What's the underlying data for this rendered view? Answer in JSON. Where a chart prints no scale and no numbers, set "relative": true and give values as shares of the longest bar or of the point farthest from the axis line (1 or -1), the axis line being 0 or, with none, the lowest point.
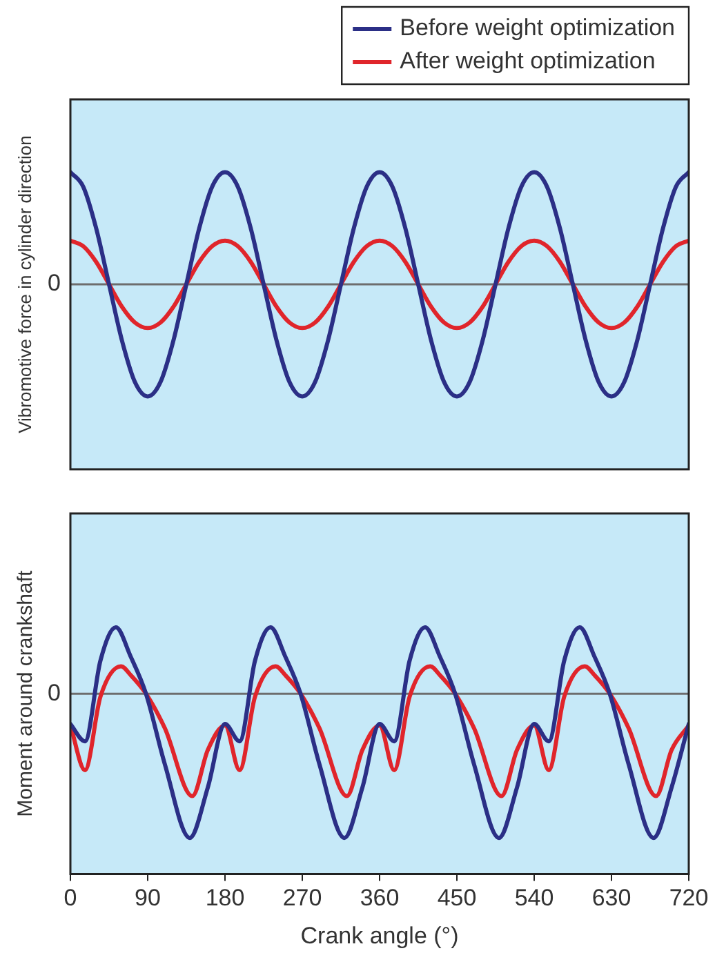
{
  "chart_data": [
    {
      "type": "line",
      "ylabel": "Vibromotive force in cylinder direction",
      "relative": true,
      "xlim": [
        0,
        720
      ],
      "xticks": [
        0,
        90,
        180,
        270,
        360,
        450,
        540,
        630,
        720
      ],
      "tick_labels": false,
      "grid": false,
      "legend": "top right",
      "marker": "none",
      "line_style": "solid",
      "ref_lines": [
        {
          "axis": "y",
          "value": 0,
          "label": "0",
          "color": "#6d6d6d"
        }
      ],
      "x": [
        0,
        15,
        30,
        45,
        60,
        75,
        90,
        105,
        120,
        135,
        150,
        165,
        180,
        195,
        210,
        225,
        240,
        255,
        270,
        285,
        300,
        315,
        330,
        345,
        360,
        375,
        390,
        405,
        420,
        435,
        450,
        465,
        480,
        495,
        510,
        525,
        540,
        555,
        570,
        585,
        600,
        615,
        630,
        645,
        660,
        675,
        690,
        705,
        720
      ],
      "series": [
        {
          "name": "Before weight optimization",
          "color": "#2b2f86",
          "values": [
            1,
            0.87,
            0.5,
            0,
            -0.5,
            -0.87,
            -1,
            -0.87,
            -0.5,
            0,
            0.5,
            0.87,
            1,
            0.87,
            0.5,
            0,
            -0.5,
            -0.87,
            -1,
            -0.87,
            -0.5,
            0,
            0.5,
            0.87,
            1,
            0.87,
            0.5,
            0,
            -0.5,
            -0.87,
            -1,
            -0.87,
            -0.5,
            0,
            0.5,
            0.87,
            1,
            0.87,
            0.5,
            0,
            -0.5,
            -0.87,
            -1,
            -0.87,
            -0.5,
            0,
            0.5,
            0.87,
            1
          ]
        },
        {
          "name": "After weight optimization",
          "color": "#e0252b",
          "values": [
            0.39,
            0.34,
            0.2,
            0,
            -0.2,
            -0.34,
            -0.39,
            -0.34,
            -0.2,
            0,
            0.2,
            0.34,
            0.39,
            0.34,
            0.2,
            0,
            -0.2,
            -0.34,
            -0.39,
            -0.34,
            -0.2,
            0,
            0.2,
            0.34,
            0.39,
            0.34,
            0.2,
            0,
            -0.2,
            -0.34,
            -0.39,
            -0.34,
            -0.2,
            0,
            0.2,
            0.34,
            0.39,
            0.34,
            0.2,
            0,
            -0.2,
            -0.34,
            -0.39,
            -0.34,
            -0.2,
            0,
            0.2,
            0.34,
            0.39
          ]
        }
      ]
    },
    {
      "type": "line",
      "xlabel": "Crank angle (°)",
      "ylabel": "Moment around crankshaft",
      "relative": true,
      "xlim": [
        0,
        720
      ],
      "xticks": [
        0,
        90,
        180,
        270,
        360,
        450,
        540,
        630,
        720
      ],
      "tick_labels": "x",
      "grid": false,
      "marker": "none",
      "line_style": "solid",
      "ref_lines": [
        {
          "axis": "y",
          "value": 0,
          "label": "0",
          "color": "#6d6d6d"
        }
      ],
      "series": [
        {
          "color": "#2b2f86",
          "x": [
            0,
            17,
            35,
            53,
            70,
            88,
            110,
            139,
            160,
            180,
            197,
            215,
            233,
            250,
            268,
            290,
            319,
            340,
            360,
            377,
            395,
            413,
            430,
            448,
            470,
            499,
            520,
            540,
            557,
            575,
            593,
            610,
            628,
            650,
            679,
            700,
            720
          ],
          "values": [
            -0.21,
            -0.33,
            0.23,
            0.46,
            0.26,
            0,
            -0.49,
            -1,
            -0.65,
            -0.21,
            -0.33,
            0.23,
            0.46,
            0.26,
            0,
            -0.49,
            -1,
            -0.65,
            -0.21,
            -0.33,
            0.23,
            0.46,
            0.26,
            0,
            -0.49,
            -1,
            -0.65,
            -0.21,
            -0.33,
            0.23,
            0.46,
            0.26,
            0,
            -0.49,
            -1,
            -0.65,
            -0.21
          ]
        },
        {
          "color": "#e0252b",
          "x": [
            0,
            17,
            35,
            59,
            70,
            88,
            110,
            142,
            160,
            180,
            197,
            215,
            239,
            250,
            268,
            290,
            322,
            340,
            360,
            377,
            395,
            419,
            430,
            448,
            470,
            502,
            520,
            540,
            557,
            575,
            599,
            610,
            628,
            650,
            682,
            700,
            720
          ],
          "values": [
            -0.22,
            -0.53,
            -0.02,
            0.19,
            0.13,
            0,
            -0.24,
            -0.71,
            -0.39,
            -0.22,
            -0.53,
            -0.02,
            0.19,
            0.13,
            0,
            -0.24,
            -0.71,
            -0.39,
            -0.22,
            -0.53,
            -0.02,
            0.19,
            0.13,
            0,
            -0.24,
            -0.71,
            -0.39,
            -0.22,
            -0.53,
            -0.02,
            0.19,
            0.13,
            0,
            -0.24,
            -0.71,
            -0.39,
            -0.22
          ]
        }
      ]
    }
  ]
}
